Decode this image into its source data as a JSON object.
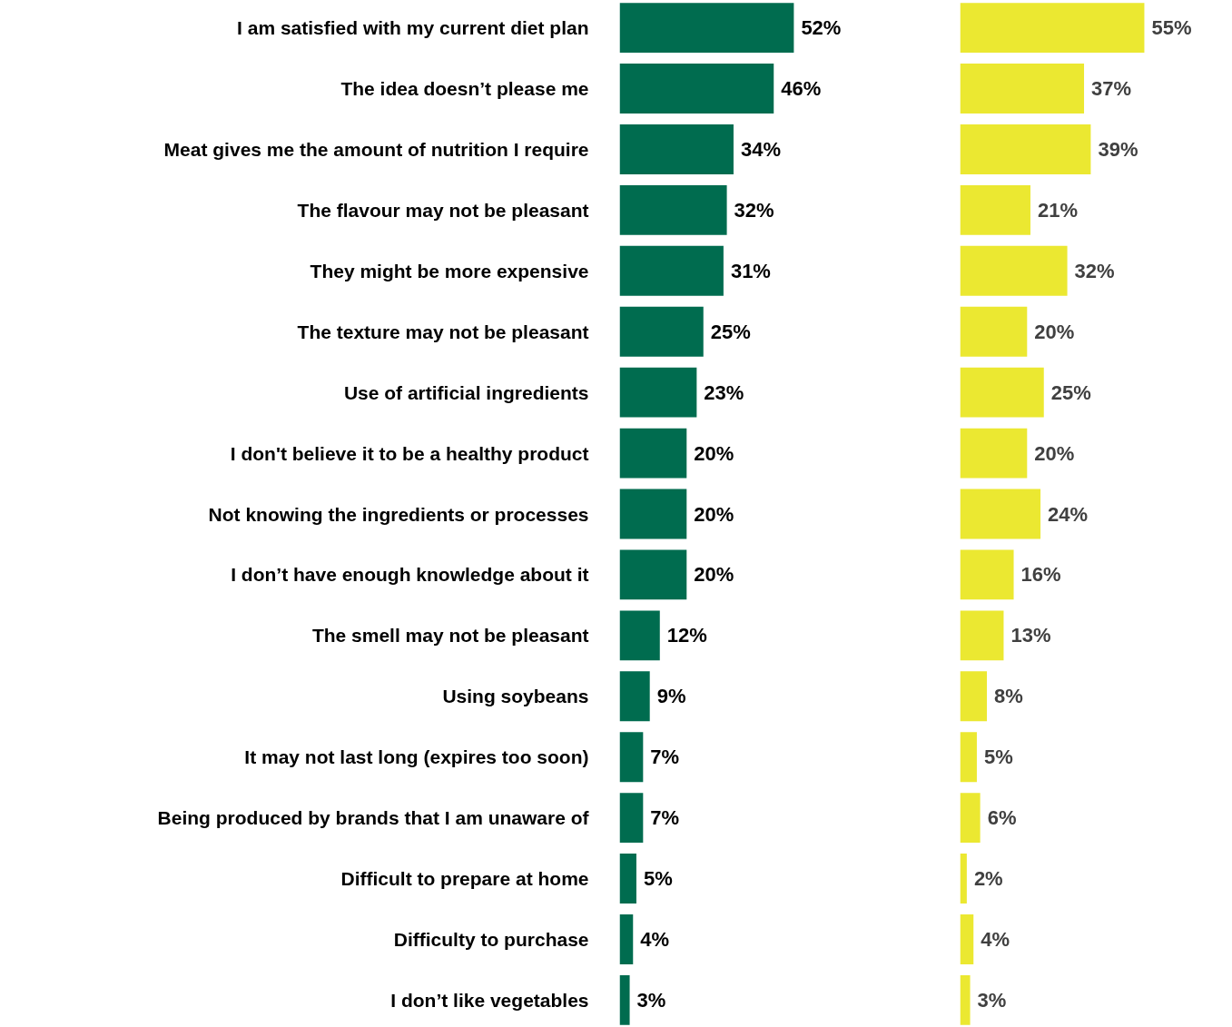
{
  "chart_data": [
    {
      "type": "bar",
      "orientation": "horizontal",
      "categories": [
        "I am satisfied with my current diet plan",
        "The idea doesn’t please me",
        "Meat gives me the amount of nutrition I require",
        "The flavour may not be pleasant",
        "They might be more expensive",
        "The texture may not be pleasant",
        "Use of artificial ingredients",
        "I don't believe it to be a healthy product",
        "Not knowing the ingredients or processes",
        "I don’t have enough knowledge about it",
        "The smell may not be pleasant",
        "Using soybeans",
        "It may not last long (expires too soon)",
        "Being produced by brands that I am unaware of",
        "Difficult to prepare at home",
        "Difficulty to purchase",
        "I don’t like vegetables"
      ],
      "series": [
        {
          "color": "#006c4f",
          "values": [
            52,
            46,
            34,
            32,
            31,
            25,
            23,
            20,
            20,
            20,
            12,
            9,
            7,
            7,
            5,
            4,
            3
          ],
          "value_labels": [
            "52%",
            "46%",
            "34%",
            "32%",
            "31%",
            "25%",
            "23%",
            "20%",
            "20%",
            "20%",
            "12%",
            "9%",
            "7%",
            "7%",
            "5%",
            "4%",
            "3%"
          ]
        }
      ],
      "grid": false,
      "tick_labels": "y"
    },
    {
      "type": "bar",
      "orientation": "horizontal",
      "categories": [
        null,
        null,
        null,
        null,
        null,
        null,
        null,
        null,
        null,
        null,
        null,
        null,
        null,
        null,
        null,
        null,
        null
      ],
      "series": [
        {
          "color": "#ebe831",
          "values": [
            55,
            37,
            39,
            21,
            32,
            20,
            25,
            20,
            24,
            16,
            13,
            8,
            5,
            6,
            2,
            4,
            3
          ],
          "value_labels": [
            "55%",
            "37%",
            "39%",
            "21%",
            "32%",
            "20%",
            "25%",
            "20%",
            "24%",
            "16%",
            "13%",
            "8%",
            "5%",
            "6%",
            "2%",
            "4%",
            "3%"
          ]
        }
      ],
      "grid": false,
      "tick_labels": false
    }
  ]
}
